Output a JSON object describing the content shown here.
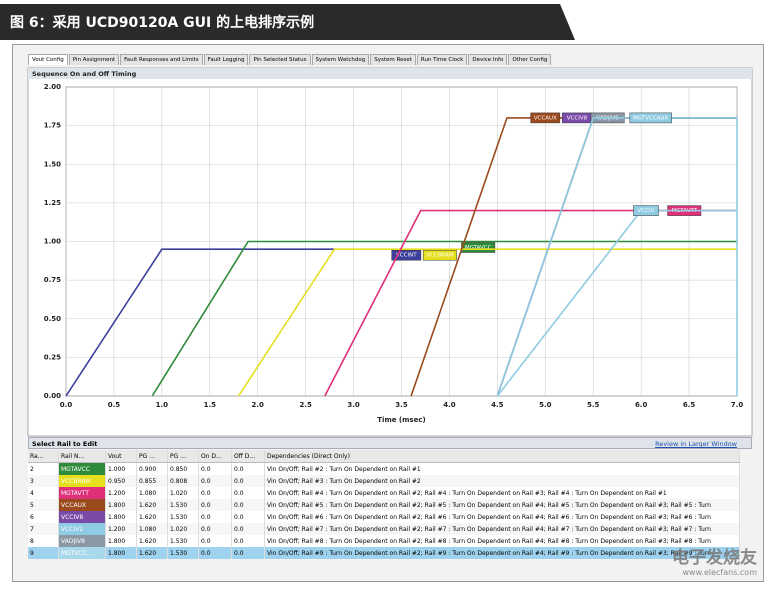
{
  "header": {
    "title": "图 6：采用 UCD90120A GUI 的上电排序示例"
  },
  "tabs": [
    "Vout Config",
    "Pin Assignment",
    "Fault Responses and Limits",
    "Fault Logging",
    "Pin Selected Status",
    "System Watchdog",
    "System Reset",
    "Run Time Clock",
    "Device Info",
    "Other Config"
  ],
  "chart_panel_title": "Sequence On and Off Timing",
  "chart_data": {
    "type": "line",
    "x_label": "Time (msec)",
    "xlim": [
      0,
      7
    ],
    "xticks": [
      {
        "value": 0,
        "label": "0.0"
      },
      {
        "value": 0.5,
        "label": "0.5"
      },
      {
        "value": 1,
        "label": "1.0"
      },
      {
        "value": 1.5,
        "label": "1.5"
      },
      {
        "value": 2,
        "label": "2.0"
      },
      {
        "value": 2.5,
        "label": "2.5"
      },
      {
        "value": 3,
        "label": "3.0"
      },
      {
        "value": 3.5,
        "label": "3.5"
      },
      {
        "value": 4,
        "label": "4.0"
      },
      {
        "value": 4.5,
        "label": "4.5"
      },
      {
        "value": 5,
        "label": "5.0"
      },
      {
        "value": 5.5,
        "label": "5.5"
      },
      {
        "value": 6,
        "label": "6.0"
      },
      {
        "value": 6.5,
        "label": "6.5"
      },
      {
        "value": 7,
        "label": "7.0"
      }
    ],
    "ylim": [
      0,
      2
    ],
    "yticks": [
      {
        "value": 0,
        "label": "0.00"
      },
      {
        "value": 0.25,
        "label": "0.25"
      },
      {
        "value": 0.5,
        "label": "0.50"
      },
      {
        "value": 0.75,
        "label": "0.75"
      },
      {
        "value": 1,
        "label": "1.00"
      },
      {
        "value": 1.25,
        "label": "1.25"
      },
      {
        "value": 1.5,
        "label": "1.50"
      },
      {
        "value": 1.75,
        "label": "1.75"
      },
      {
        "value": 2,
        "label": "2.00"
      }
    ],
    "grid": true,
    "series": [
      {
        "name": "VCCINT",
        "color": "#3c3f9c",
        "x": [
          0,
          1,
          2.8
        ],
        "values": [
          0,
          0.95,
          0.95
        ]
      },
      {
        "name": "MGTAVCC",
        "color": "#2e8b3a",
        "x": [
          0.9,
          1.9,
          7
        ],
        "values": [
          0,
          1,
          1
        ]
      },
      {
        "name": "VCCBRAM",
        "color": "#e6df1e",
        "x": [
          1.8,
          2.8,
          7
        ],
        "values": [
          0,
          0.95,
          0.95
        ]
      },
      {
        "name": "MGTAVTT",
        "color": "#e0307a",
        "x": [
          2.7,
          3.7,
          7
        ],
        "values": [
          0,
          1.2,
          1.2
        ]
      },
      {
        "name": "VCCAUX",
        "color": "#9b4a1e",
        "x": [
          3.6,
          4.6,
          7
        ],
        "values": [
          0,
          1.8,
          1.8
        ]
      },
      {
        "name": "VCCIV8",
        "color": "#7a4aa8",
        "x": [
          4.5,
          5.5,
          7
        ],
        "values": [
          0,
          1.8,
          1.8
        ]
      },
      {
        "name": "VADJIV8",
        "color": "#8a98a6",
        "x": [
          4.5,
          5.5,
          7
        ],
        "values": [
          0,
          1.8,
          1.8
        ]
      },
      {
        "name": "MGTVCCAUX",
        "color": "#8fcbe2",
        "x": [
          4.5,
          5.5,
          7,
          7
        ],
        "values": [
          0,
          1.8,
          1.8,
          0
        ]
      },
      {
        "name": "VCCIV",
        "color": "#8fcbe2",
        "x": [
          4.5,
          6,
          7
        ],
        "values": [
          0,
          1.2,
          1.2
        ]
      }
    ]
  },
  "table_panel": {
    "title": "Select Rail to Edit",
    "link": "Review in Larger Window"
  },
  "table": {
    "columns": [
      "Ra...",
      "Rail N...",
      "Vout",
      "PG ...",
      "PG ...",
      "On D...",
      "Off D...",
      "Dependencies (Direct Only)"
    ],
    "rows": [
      {
        "color": "#2e8b3a",
        "cells": [
          "2",
          "MGTAVCC",
          "1.000",
          "0.900",
          "0.850",
          "0.0",
          "0.0",
          "Vin On/Off; Rail #2 : Turn On Dependent on Rail #1"
        ]
      },
      {
        "color": "#e6df1e",
        "cells": [
          "3",
          "VCCBRAM",
          "0.950",
          "0.855",
          "0.808",
          "0.0",
          "0.0",
          "Vin On/Off; Rail #3 : Turn On Dependent on Rail #2"
        ]
      },
      {
        "color": "#e0307a",
        "cells": [
          "4",
          "MGTAVTT",
          "1.200",
          "1.080",
          "1.020",
          "0.0",
          "0.0",
          "Vin On/Off; Rail #4 : Turn On Dependent on Rail #2; Rail #4 : Turn On Dependent on Rail #3; Rail #4 : Turn On Dependent on Rail #1"
        ]
      },
      {
        "color": "#9b4a1e",
        "cells": [
          "5",
          "VCCAUX",
          "1.800",
          "1.620",
          "1.530",
          "0.0",
          "0.0",
          "Vin On/Off; Rail #5 : Turn On Dependent on Rail #2; Rail #5 : Turn On Dependent on Rail #4; Rail #5 : Turn On Dependent on Rail #3; Rail #5 : Turn"
        ]
      },
      {
        "color": "#7a4aa8",
        "cells": [
          "6",
          "VCCIV8",
          "1.800",
          "1.620",
          "1.530",
          "0.0",
          "0.0",
          "Vin On/Off; Rail #6 : Turn On Dependent on Rail #2; Rail #6 : Turn On Dependent on Rail #4; Rail #6 : Turn On Dependent on Rail #3; Rail #6 : Turn"
        ]
      },
      {
        "color": "#8fcbe2",
        "cells": [
          "7",
          "VCCIV2",
          "1.200",
          "1.080",
          "1.020",
          "0.0",
          "0.0",
          "Vin On/Off; Rail #7 : Turn On Dependent on Rail #2; Rail #7 : Turn On Dependent on Rail #4; Rail #7 : Turn On Dependent on Rail #3; Rail #7 : Turn"
        ]
      },
      {
        "color": "#8a98a6",
        "cells": [
          "8",
          "VADJIV8",
          "1.800",
          "1.620",
          "1.530",
          "0.0",
          "0.0",
          "Vin On/Off; Rail #8 : Turn On Dependent on Rail #2; Rail #8 : Turn On Dependent on Rail #4; Rail #8 : Turn On Dependent on Rail #3; Rail #8 : Turn"
        ]
      },
      {
        "color": "#a8d8ec",
        "cells": [
          "9",
          "MGTVCC...",
          "1.800",
          "1.620",
          "1.530",
          "0.0",
          "0.0",
          "Vin On/Off; Rail #9 : Turn On Dependent on Rail #2; Rail #9 : Turn On Dependent on Rail #4; Rail #9 : Turn On Dependent on Rail #3; Rail #9 : Turn"
        ]
      }
    ]
  },
  "watermark": {
    "brand": "电子发烧友",
    "url": "www.elecfans.com"
  }
}
